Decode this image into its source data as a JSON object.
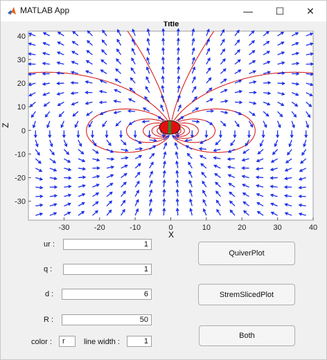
{
  "window": {
    "title": "MATLAB App",
    "minimize": "—",
    "maximize": "☐",
    "close": "✕"
  },
  "plot": {
    "title": "Title",
    "xlabel": "X",
    "ylabel": "Z",
    "x_ticks": [
      "-30",
      "-20",
      "-10",
      "0",
      "10",
      "20",
      "30",
      "40"
    ],
    "y_ticks": [
      "40",
      "30",
      "20",
      "10",
      "0",
      "-10",
      "-20",
      "-30"
    ],
    "colors": {
      "streamlines": "#d42020",
      "arrows": "#1a2ee6",
      "dipole": "#e01010"
    }
  },
  "chart_data": {
    "type": "quiver+streamline",
    "title": "Title",
    "xlabel": "X",
    "ylabel": "Z",
    "xlim": [
      -40,
      40
    ],
    "ylim": [
      -38,
      42
    ],
    "grid": false,
    "dipole": {
      "x": 0,
      "z": 0
    }
  },
  "form": {
    "ur_label": "ur :",
    "ur_value": "1",
    "q_label": "q :",
    "q_value": "1",
    "d_label": "d :",
    "d_value": "6",
    "R_label": "R :",
    "R_value": "50",
    "color_label": "color :",
    "color_value": "r",
    "line_width_label": "line width :",
    "line_width_value": "1"
  },
  "buttons": {
    "quiver": "QuiverPlot",
    "streamsliced": "StremSlicedPlot",
    "both": "Both"
  }
}
